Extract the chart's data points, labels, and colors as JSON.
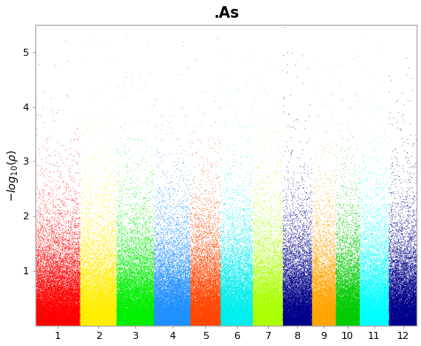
{
  "title": ".As",
  "ylabel": "$-log_{10}(\\rho)$",
  "xlabel": "",
  "n_chromosomes": 12,
  "chr_colors": [
    "#FF0000",
    "#FFEE00",
    "#00EE00",
    "#1E90FF",
    "#FF4500",
    "#00EEEE",
    "#AAFF00",
    "#00008B",
    "#FFA500",
    "#00CC00",
    "#00FFFF",
    "#00008B"
  ],
  "ylim": [
    0,
    5.5
  ],
  "yticks": [
    1,
    2,
    3,
    4,
    5
  ],
  "n_snps_per_chr": 15000,
  "background_color": "#ffffff",
  "plot_bg": "#ffffff",
  "point_size": 0.3,
  "alpha": 1.0,
  "seed": 42
}
